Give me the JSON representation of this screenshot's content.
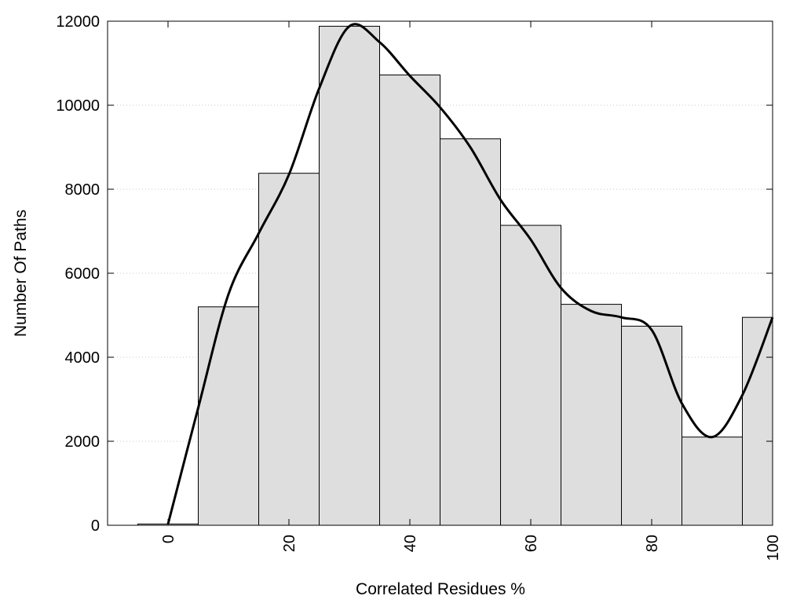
{
  "chart_data": {
    "type": "bar",
    "title": "",
    "xlabel": "Correlated Residues %",
    "ylabel": "Number Of Paths",
    "xlim": [
      -10,
      100
    ],
    "ylim": [
      0,
      12000
    ],
    "x_ticks": [
      0,
      20,
      40,
      60,
      80,
      100
    ],
    "y_ticks": [
      0,
      2000,
      4000,
      6000,
      8000,
      10000,
      12000
    ],
    "y_grid": true,
    "legend": "none",
    "bin_width": 10,
    "bins": [
      {
        "center": 0,
        "value": 30
      },
      {
        "center": 10,
        "value": 5200
      },
      {
        "center": 20,
        "value": 8380
      },
      {
        "center": 30,
        "value": 11880
      },
      {
        "center": 40,
        "value": 10720
      },
      {
        "center": 50,
        "value": 9200
      },
      {
        "center": 60,
        "value": 7140
      },
      {
        "center": 70,
        "value": 5260
      },
      {
        "center": 80,
        "value": 4740
      },
      {
        "center": 90,
        "value": 2100
      },
      {
        "center": 100,
        "value": 4950
      }
    ],
    "curve": {
      "x": [
        0,
        5,
        10,
        15,
        20,
        25,
        30,
        35,
        40,
        45,
        50,
        55,
        60,
        65,
        70,
        75,
        80,
        85,
        90,
        95,
        100
      ],
      "y": [
        30,
        2800,
        5500,
        6950,
        8350,
        10400,
        11880,
        11500,
        10700,
        9950,
        9000,
        7750,
        6800,
        5650,
        5100,
        4950,
        4650,
        2900,
        2100,
        3100,
        4950
      ]
    },
    "colors": {
      "bar_fill": "#dedede",
      "bar_stroke": "#000000",
      "curve": "#000000",
      "grid": "#c8c8c8"
    }
  }
}
